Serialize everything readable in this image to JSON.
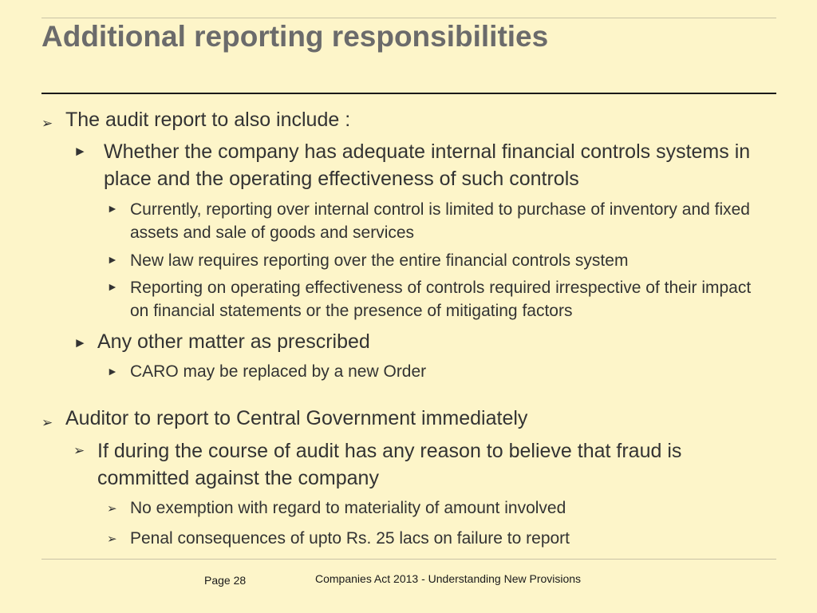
{
  "slide": {
    "title": "Additional reporting responsibilities"
  },
  "bullets": {
    "chevron": "➢",
    "arrow": "►"
  },
  "content": {
    "item1": "The audit report to also include :",
    "item1_1": "Whether the company has adequate internal financial controls systems in place and the operating effectiveness of such controls",
    "item1_1_1": "Currently, reporting over internal control is limited to purchase of inventory and fixed assets and sale of goods and services",
    "item1_1_2": "New law requires reporting over the entire financial controls system",
    "item1_1_3": "Reporting on operating effectiveness of controls required irrespective of their impact on financial statements or the presence of mitigating factors",
    "item1_2": "Any other matter as prescribed",
    "item1_2_1": "CARO may be replaced by a new Order",
    "item2": "Auditor to report to Central Government immediately",
    "item2_1": "If during the course of audit has any reason to believe that fraud is committed against the company",
    "item2_1_1": "No exemption with regard to materiality of amount involved",
    "item2_1_2": "Penal consequences of upto Rs. 25 lacs on failure to report"
  },
  "footer": {
    "page": "Page 28",
    "title": "Companies Act 2013 - Understanding New Provisions"
  },
  "colors": {
    "background": "#fdf5c9",
    "title": "#6b6b6b",
    "text": "#333333"
  }
}
